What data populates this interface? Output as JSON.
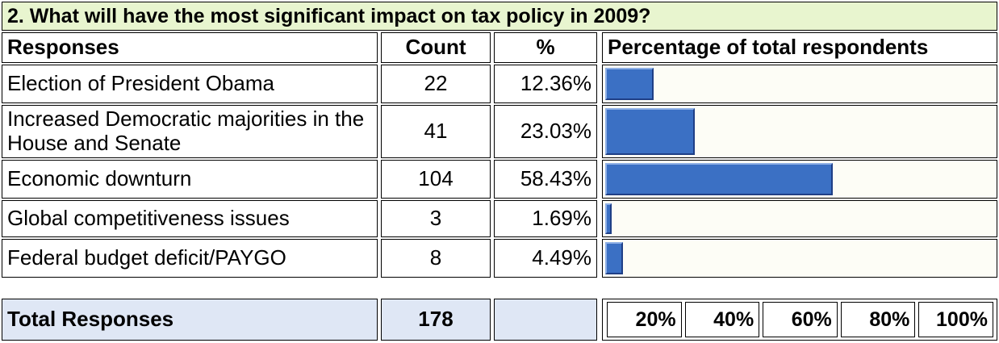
{
  "title": "2. What will have the most significant impact on tax policy in 2009?",
  "table": {
    "headers": [
      "Responses",
      "Count",
      "%",
      "Percentage of total respondents"
    ],
    "rows": [
      {
        "response": "Election of President Obama",
        "count": 22,
        "percent": 12.36,
        "percent_label": "12.36%"
      },
      {
        "response": "Increased Democratic majorities in the House and Senate",
        "count": 41,
        "percent": 23.03,
        "percent_label": "23.03%"
      },
      {
        "response": "Economic downturn",
        "count": 104,
        "percent": 58.43,
        "percent_label": "58.43%"
      },
      {
        "response": "Global competitiveness issues",
        "count": 3,
        "percent": 1.69,
        "percent_label": "1.69%"
      },
      {
        "response": "Federal budget deficit/PAYGO",
        "count": 8,
        "percent": 4.49,
        "percent_label": "4.49%"
      }
    ],
    "total": {
      "label": "Total Responses",
      "count": 178
    },
    "scale": [
      {
        "value": 20,
        "label": "20%"
      },
      {
        "value": 40,
        "label": "40%"
      },
      {
        "value": 60,
        "label": "60%"
      },
      {
        "value": 80,
        "label": "80%"
      },
      {
        "value": 100,
        "label": "100%"
      }
    ]
  }
}
